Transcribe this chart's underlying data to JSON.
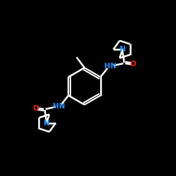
{
  "bg_color": "#000000",
  "bond_color": "#ffffff",
  "N_color": "#1e90ff",
  "O_color": "#ff2200",
  "bond_width": 1.8,
  "figsize": [
    2.5,
    2.5
  ],
  "dpi": 100,
  "xlim": [
    0,
    10
  ],
  "ylim": [
    0,
    10
  ]
}
